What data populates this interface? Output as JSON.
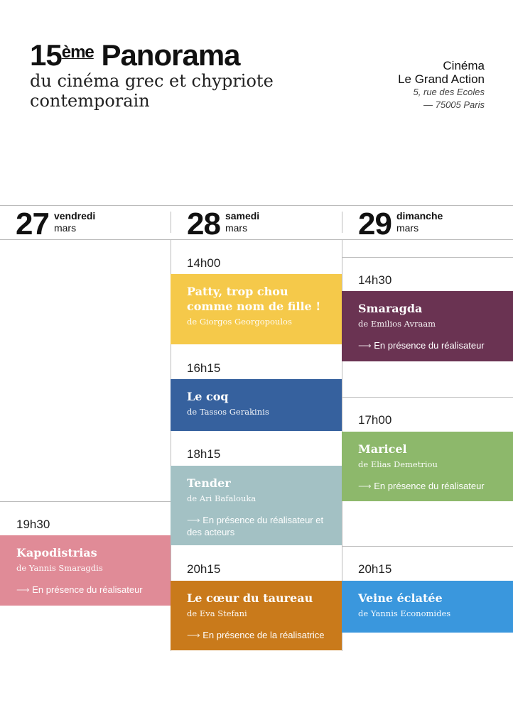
{
  "header": {
    "number": "15",
    "suffix": "ème",
    "title": "Panorama",
    "subtitle_line1": "du cinéma grec et chypriote",
    "subtitle_line2": "contemporain"
  },
  "venue": {
    "line1": "Cinéma",
    "line2": "Le Grand Action",
    "address1": "5, rue des Ecoles",
    "address2": "— 75005 Paris"
  },
  "days": [
    {
      "num": "27",
      "weekday": "vendredi",
      "month": "mars"
    },
    {
      "num": "28",
      "weekday": "samedi",
      "month": "mars"
    },
    {
      "num": "29",
      "weekday": "dimanche",
      "month": "mars"
    }
  ],
  "arrow": "⟶",
  "screenings": [
    {
      "day": "27",
      "time": "19h30",
      "title": "Kapodistrias",
      "director": "de Yannis Smaragdis",
      "note": "En présence du réalisateur",
      "color": "#e08b97"
    },
    {
      "day": "28",
      "time": "14h00",
      "title": "Patty, trop chou comme nom de fille !",
      "director": "de Giorgos Georgopoulos",
      "color": "#f5c94a"
    },
    {
      "day": "28",
      "time": "16h15",
      "title": "Le coq",
      "director": "de Tassos Gerakinis",
      "color": "#36619e"
    },
    {
      "day": "28",
      "time": "18h15",
      "title": "Tender",
      "director": "de Ari Bafalouka",
      "note": "En présence du réalisateur et des acteurs",
      "color": "#a3c1c4"
    },
    {
      "day": "28",
      "time": "20h15",
      "title": "Le cœur du taureau",
      "director": "de Eva Stefani",
      "note": "En présence de la réalisatrice",
      "color": "#c97a1b"
    },
    {
      "day": "29",
      "time": "14h30",
      "title": "Smaragda",
      "director": "de Emilios Avraam",
      "note": "En présence du réalisateur",
      "color": "#6a3352"
    },
    {
      "day": "29",
      "time": "17h00",
      "title": "Maricel",
      "director": "de Elias Demetriou",
      "note": "En présence du réalisateur",
      "color": "#8db86b"
    },
    {
      "day": "29",
      "time": "20h15",
      "title": "Veine éclatée",
      "director": "de Yannis Economides",
      "color": "#3a97dd"
    }
  ]
}
